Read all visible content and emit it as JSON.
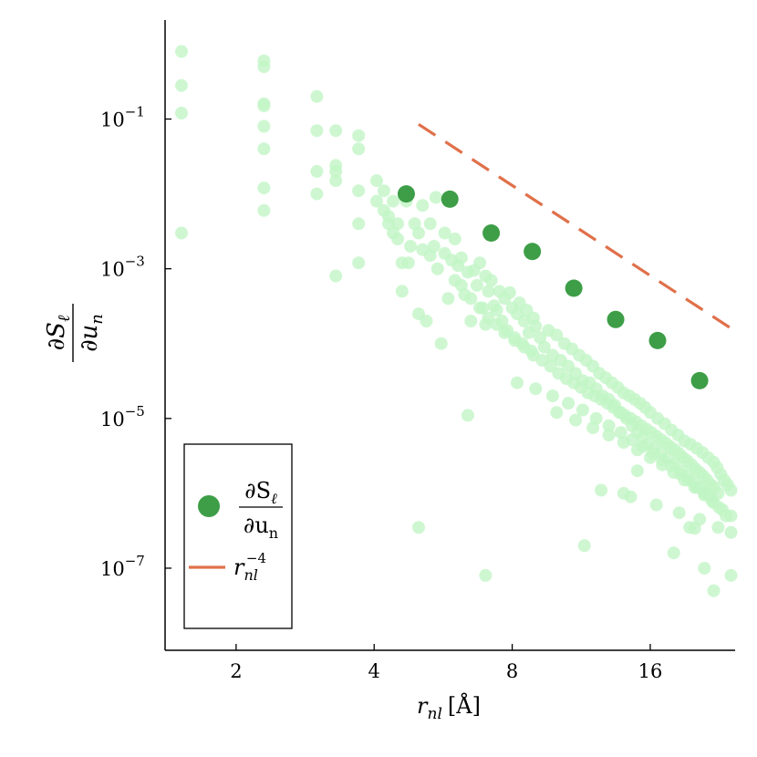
{
  "chart_data": {
    "type": "scatter",
    "xscale": "log2",
    "yscale": "log10",
    "xlim": [
      1.4,
      24.5
    ],
    "ylim": [
      8e-09,
      2.1
    ],
    "x_ticks": [
      2,
      4,
      8,
      16
    ],
    "y_ticks": [
      0.1,
      0.001,
      1e-05,
      1e-07
    ],
    "y_tick_labels": [
      {
        "base": "10",
        "exp": "−1"
      },
      {
        "base": "10",
        "exp": "−3"
      },
      {
        "base": "10",
        "exp": "−5"
      },
      {
        "base": "10",
        "exp": "−7"
      }
    ],
    "xlabel": {
      "var": "r",
      "sub": "nl",
      "unit": "[Å]"
    },
    "ylabel": {
      "num": "∂S",
      "num_sub": "ℓ",
      "den": "∂u",
      "den_sub": "n"
    },
    "grid": false,
    "legend_position": "bottom-left",
    "colors": {
      "background_points": "#c2f5c6",
      "binned": "#3d9e47",
      "reference": "#e0704a"
    },
    "background_points": {
      "name": "",
      "note_visible": "dense cloud of light green points",
      "x": [
        1.52,
        1.52,
        1.52,
        1.52,
        2.3,
        2.3,
        2.3,
        2.3,
        2.3,
        2.3,
        2.3,
        2.3,
        3.0,
        3.0,
        3.0,
        3.0,
        3.3,
        3.3,
        3.3,
        3.3,
        3.3,
        3.7,
        3.7,
        3.7,
        3.7,
        3.7,
        4.05,
        4.05,
        4.2,
        4.2,
        4.3,
        4.3,
        4.4,
        4.4,
        4.5,
        4.5,
        4.6,
        4.6,
        4.7,
        4.75,
        4.8,
        4.9,
        5.0,
        5.0,
        5.1,
        5.1,
        5.2,
        5.3,
        5.3,
        5.4,
        5.45,
        5.5,
        5.6,
        5.7,
        5.7,
        5.8,
        5.9,
        6.0,
        6.0,
        6.1,
        6.2,
        6.3,
        6.4,
        6.5,
        6.6,
        6.7,
        6.8,
        6.9,
        7.0,
        7.0,
        7.1,
        7.2,
        7.3,
        7.4,
        7.5,
        7.6,
        7.7,
        7.8,
        7.9,
        8.0,
        8.1,
        8.2,
        8.3,
        8.4,
        8.5,
        8.6,
        8.7,
        8.8,
        8.9,
        9.0,
        9.2,
        9.4,
        9.6,
        9.8,
        10.0,
        10.2,
        10.4,
        10.6,
        10.8,
        11.0,
        11.2,
        11.4,
        11.6,
        11.8,
        12.0,
        12.2,
        12.4,
        12.6,
        12.8,
        13.0,
        13.2,
        13.4,
        13.6,
        13.8,
        14.0,
        14.2,
        14.4,
        14.6,
        14.8,
        15.0,
        15.2,
        15.4,
        15.6,
        15.8,
        16.0,
        16.3,
        16.6,
        16.9,
        17.2,
        17.5,
        17.8,
        18.1,
        18.4,
        18.7,
        19.0,
        19.3,
        19.6,
        19.9,
        20.2,
        20.5,
        20.8,
        21.1,
        21.4,
        21.7,
        22.0,
        22.4,
        22.8,
        23.2,
        23.6,
        24.0,
        6.2,
        6.5,
        6.8,
        7.1,
        7.4,
        7.7,
        8.1,
        8.5,
        8.9,
        9.3,
        9.7,
        10.1,
        10.5,
        10.9,
        11.3,
        11.7,
        12.1,
        12.5,
        12.9,
        13.3,
        13.7,
        14.1,
        14.5,
        14.9,
        15.3,
        15.7,
        16.1,
        16.5,
        16.9,
        17.3,
        17.7,
        18.1,
        18.5,
        18.9,
        19.3,
        19.7,
        20.1,
        20.5,
        20.9,
        21.3,
        21.7,
        22.1,
        22.5,
        8.2,
        9.0,
        9.8,
        10.6,
        11.4,
        12.2,
        13.0,
        13.8,
        14.6,
        15.4,
        16.2,
        17.0,
        17.8,
        18.6,
        19.4,
        20.2,
        21.0,
        21.8,
        22.6,
        23.4,
        10.0,
        11.0,
        12.0,
        13.0,
        14.0,
        15.0,
        16.0,
        17.0,
        18.0,
        19.0,
        20.0,
        21.0,
        22.0,
        23.0,
        24.0,
        12.5,
        14.5,
        16.5,
        18.5,
        20.5,
        22.5,
        24.0,
        5.0,
        6.4,
        7.0,
        11.5,
        14.0,
        15.0,
        18.0,
        19.5,
        20.0,
        21.0,
        22.0,
        24.0
      ],
      "y": [
        0.8,
        0.28,
        0.12,
        0.003,
        0.6,
        0.5,
        0.16,
        0.15,
        0.08,
        0.04,
        0.012,
        0.006,
        0.2,
        0.07,
        0.02,
        0.01,
        0.07,
        0.024,
        0.02,
        0.015,
        0.0008,
        0.06,
        0.04,
        0.011,
        0.004,
        0.0012,
        0.015,
        0.008,
        0.011,
        0.006,
        0.005,
        0.004,
        0.008,
        0.003,
        0.004,
        0.0025,
        0.0005,
        0.0012,
        0.008,
        0.0012,
        0.002,
        0.004,
        0.00025,
        0.003,
        0.0018,
        0.007,
        0.0002,
        0.004,
        0.0015,
        0.002,
        0.009,
        0.001,
        0.0001,
        0.003,
        0.0016,
        0.0004,
        0.0013,
        0.0025,
        0.0007,
        0.0011,
        0.0014,
        0.00045,
        0.0009,
        0.0002,
        0.00095,
        0.0006,
        0.0012,
        0.0003,
        0.0008,
        0.00018,
        0.0005,
        0.0007,
        0.00032,
        0.00028,
        0.0005,
        0.0002,
        0.0004,
        0.00015,
        0.00048,
        0.0003,
        0.00012,
        0.00025,
        0.00035,
        0.0001,
        0.0002,
        0.00028,
        0.00014,
        8e-05,
        0.00022,
        0.00017,
        0.00012,
        9e-05,
        0.00015,
        7e-05,
        0.00013,
        6e-05,
        0.0001,
        5e-05,
        8.5e-05,
        4e-05,
        7e-05,
        3.2e-05,
        6e-05,
        3e-05,
        5e-05,
        2.5e-05,
        4e-05,
        2e-05,
        3.5e-05,
        1.8e-05,
        3e-05,
        1.5e-05,
        2.6e-05,
        1.2e-05,
        2.2e-05,
        1e-05,
        2e-05,
        8e-06,
        1.8e-05,
        6.5e-06,
        1.6e-05,
        5.5e-06,
        1.4e-05,
        4.5e-06,
        1.2e-05,
        4e-06,
        1e-05,
        3.5e-06,
        8.5e-06,
        3e-06,
        7e-06,
        2.5e-06,
        6e-06,
        2e-06,
        5e-06,
        1.7e-06,
        4.5e-06,
        1.4e-06,
        4e-06,
        1.2e-06,
        3.5e-06,
        1e-06,
        3e-06,
        9e-07,
        2.6e-06,
        2.2e-06,
        1.8e-06,
        1.5e-06,
        1.3e-06,
        1.1e-06,
        0.0006,
        0.0004,
        0.0003,
        0.00022,
        0.00018,
        0.00014,
        0.00011,
        9e-05,
        7e-05,
        6e-05,
        5e-05,
        4e-05,
        3.4e-05,
        3e-05,
        2.6e-05,
        2.2e-05,
        2e-05,
        1.8e-05,
        1.6e-05,
        1.4e-05,
        1.2e-05,
        1.1e-05,
        1e-05,
        9e-06,
        8e-06,
        7.2e-06,
        6.5e-06,
        5.8e-06,
        5.2e-06,
        4.7e-06,
        4.2e-06,
        3.8e-06,
        3.4e-06,
        3e-06,
        2.7e-06,
        2.4e-06,
        2.1e-06,
        1.9e-06,
        1.7e-06,
        1.5e-06,
        1.3e-06,
        1.2e-06,
        1e-06,
        3e-05,
        2.5e-05,
        2e-05,
        1.6e-05,
        1.3e-05,
        1e-05,
        8e-06,
        6.5e-06,
        5.2e-06,
        4.2e-06,
        3.4e-06,
        2.8e-06,
        2.3e-06,
        1.8e-06,
        1.5e-06,
        1.2e-06,
        1e-06,
        8e-07,
        6.5e-07,
        5e-07,
        1.2e-05,
        9.5e-06,
        7.5e-06,
        6e-06,
        4.8e-06,
        3.8e-06,
        3e-06,
        2.4e-06,
        1.9e-06,
        1.5e-06,
        1.2e-06,
        9.5e-07,
        7.5e-07,
        6e-07,
        5e-07,
        1.1e-06,
        9e-07,
        7e-07,
        5.5e-07,
        4.5e-07,
        3.5e-07,
        3e-07,
        3.5e-07,
        1.1e-05,
        8e-08,
        2e-07,
        1e-06,
        2e-06,
        1.6e-07,
        3.5e-07,
        3.4e-07,
        1e-07,
        5e-08,
        8e-08
      ]
    },
    "binned": {
      "x": [
        4.7,
        5.85,
        7.2,
        8.85,
        10.9,
        13.45,
        16.6,
        20.5
      ],
      "y": [
        0.01,
        0.0085,
        0.003,
        0.0017,
        0.00055,
        0.00021,
        0.00011,
        3.2e-05
      ]
    },
    "reference": {
      "x": [
        5.0,
        24.0
      ],
      "y": [
        0.085,
        0.00016
      ]
    },
    "legend": [
      {
        "key": "binned",
        "num": "∂S",
        "num_sub": "ℓ",
        "den": "∂u",
        "den_sub": "n"
      },
      {
        "key": "reference",
        "base": "r",
        "sub": "nl",
        "sup": "−4"
      }
    ]
  }
}
